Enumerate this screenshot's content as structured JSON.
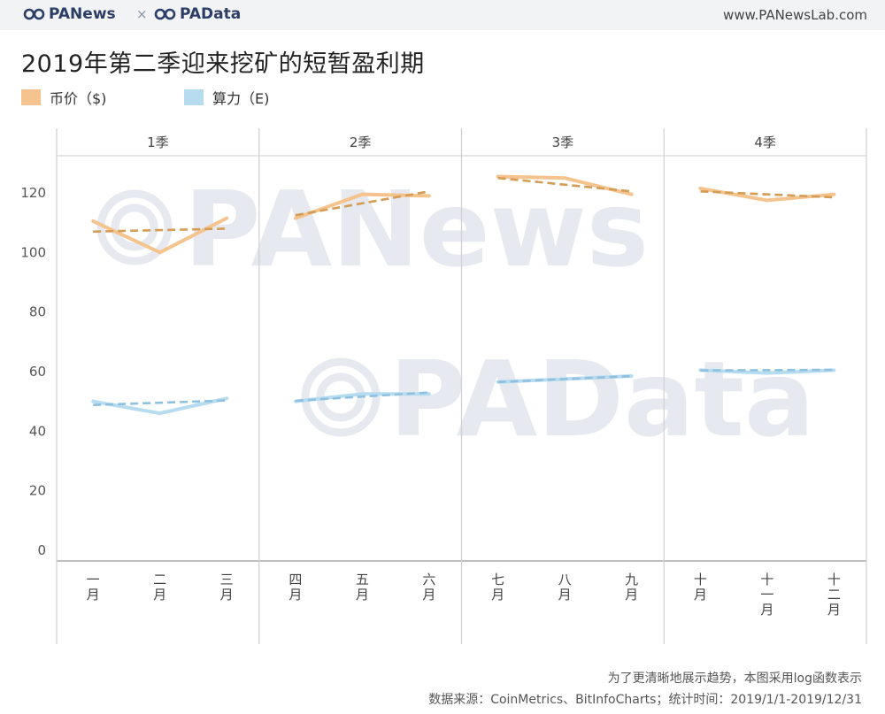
{
  "header": {
    "brand_left": "PANews",
    "brand_sep": "×",
    "brand_right": "PAData",
    "site": "www.PANewsLab.com"
  },
  "chart_title": "2019年第二季迎来挖矿的短暂盈利期",
  "watermark": [
    "PANews",
    "PAData"
  ],
  "footnotes": {
    "line1": "为了更清晰地展示趋势，本图采用log函数表示",
    "line2": "数据来源：CoinMetrics、BitInfoCharts；统计时间：2019/1/1-2019/12/31"
  },
  "colors": {
    "price": "#f5c48e",
    "price_trend": "#d49c55",
    "hash": "#b8dcef",
    "hash_trend": "#8ec0e0",
    "brand": "#2c3e66",
    "grid_line": "#cfcfcf",
    "watermark": "#e6e9ef"
  },
  "chart_data": {
    "type": "line",
    "title": "2019年第二季迎来挖矿的短暂盈利期",
    "legend": [
      {
        "name": "币价（$)",
        "color": "#f5c48e"
      },
      {
        "name": "算力（E)",
        "color": "#b8dcef"
      }
    ],
    "legend_position": "top-left",
    "ylim": [
      0,
      130
    ],
    "y_ticks": [
      0,
      20,
      40,
      60,
      80,
      100,
      120
    ],
    "panels": [
      {
        "label": "1季",
        "months": [
          "一月",
          "二月",
          "三月"
        ]
      },
      {
        "label": "2季",
        "months": [
          "四月",
          "五月",
          "六月"
        ]
      },
      {
        "label": "3季",
        "months": [
          "七月",
          "八月",
          "九月"
        ]
      },
      {
        "label": "4季",
        "months": [
          "十月",
          "十一月",
          "十二月"
        ]
      }
    ],
    "series": [
      {
        "name": "币价（$)",
        "values": [
          110.5,
          100,
          111.5,
          111.5,
          119.5,
          119,
          125.5,
          125,
          119.5,
          121.5,
          117.5,
          119.5
        ]
      },
      {
        "name": "算力（E)",
        "values": [
          50,
          46,
          51,
          50,
          52.5,
          52.5,
          56.5,
          57.5,
          58.5,
          60.5,
          59.5,
          60.5
        ]
      }
    ],
    "trend_lines": {
      "price": [
        [
          107,
          108
        ],
        [
          112.5,
          120.5
        ],
        [
          125,
          120.5
        ],
        [
          120.5,
          118.5
        ]
      ],
      "hash": [
        [
          48.8,
          50.3
        ],
        [
          50.2,
          53
        ],
        [
          56.5,
          58.5
        ],
        [
          60.4,
          60.6
        ]
      ]
    },
    "grid": false
  }
}
